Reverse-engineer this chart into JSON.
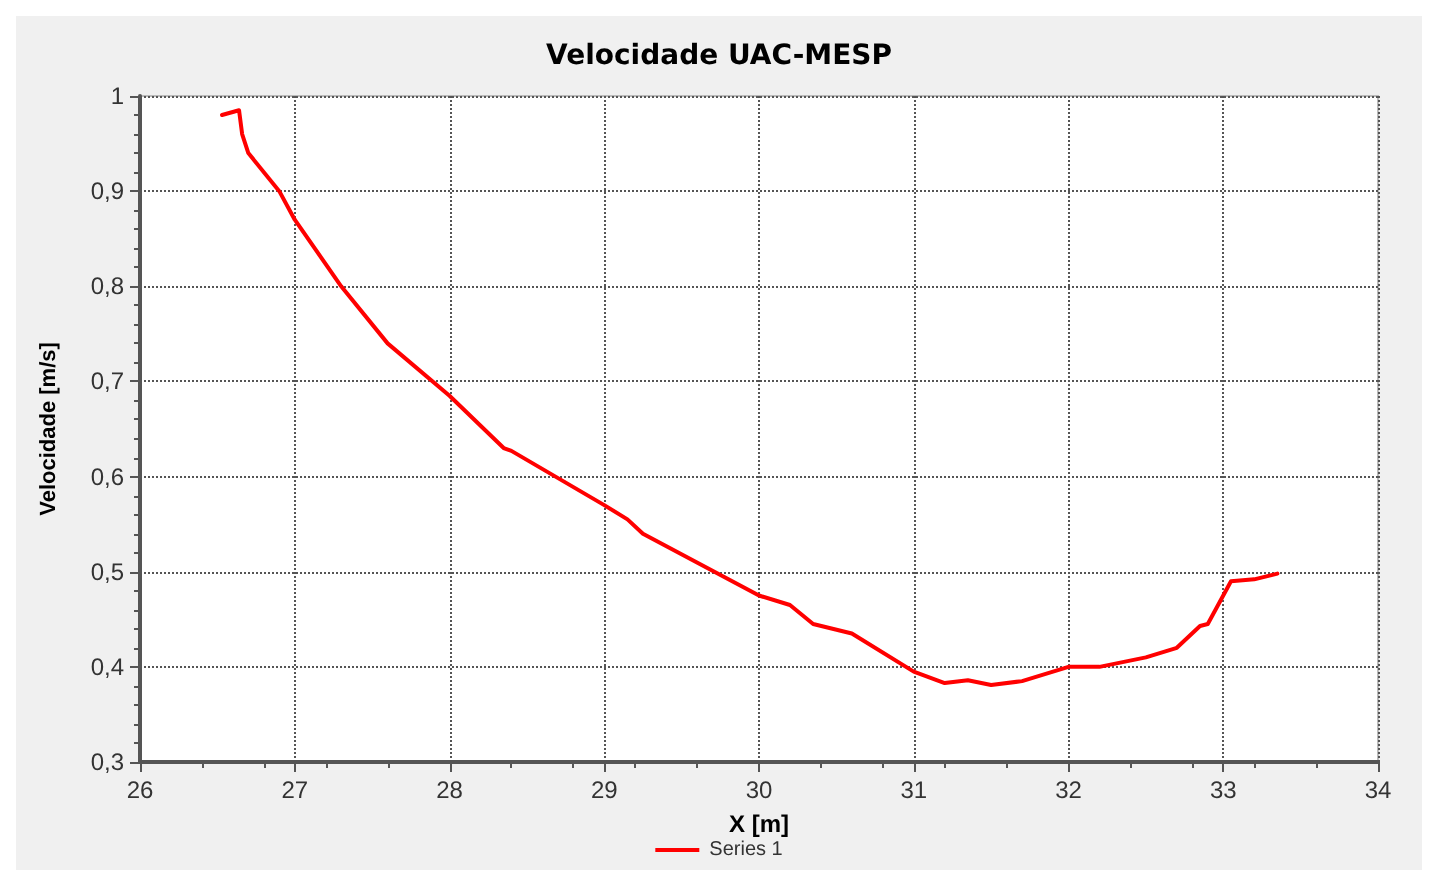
{
  "chart_data": {
    "type": "line",
    "title": "Velocidade UAC-MESP",
    "xlabel": "X [m]",
    "ylabel": "Velocidade [m/s]",
    "xlim": [
      26,
      34
    ],
    "xticks": [
      26,
      27,
      28,
      29,
      30,
      31,
      32,
      33,
      34
    ],
    "ylim": [
      0.3,
      1
    ],
    "yticks": [
      {
        "value": 0.3,
        "label": "0,3"
      },
      {
        "value": 0.4,
        "label": "0,4"
      },
      {
        "value": 0.5,
        "label": "0,5"
      },
      {
        "value": 0.6,
        "label": "0,6"
      },
      {
        "value": 0.7,
        "label": "0,7"
      },
      {
        "value": 0.8,
        "label": "0,8"
      },
      {
        "value": 0.9,
        "label": "0,9"
      },
      {
        "value": 1,
        "label": "1"
      }
    ],
    "grid": true,
    "legend": "bottom",
    "marker": "none",
    "line_style": "solid",
    "x": [
      26.53,
      26.64,
      26.66,
      26.7,
      26.9,
      27.0,
      27.3,
      27.6,
      28.0,
      28.35,
      28.4,
      29.0,
      29.15,
      29.25,
      30.0,
      30.2,
      30.35,
      30.6,
      31.0,
      31.2,
      31.35,
      31.5,
      31.7,
      32.0,
      32.2,
      32.5,
      32.7,
      32.85,
      32.9,
      33.05,
      33.2,
      33.35
    ],
    "series": [
      {
        "name": "Series 1",
        "color": "#ff0000",
        "values": [
          0.98,
          0.985,
          0.96,
          0.94,
          0.9,
          0.87,
          0.8,
          0.74,
          0.685,
          0.63,
          0.627,
          0.57,
          0.555,
          0.54,
          0.475,
          0.465,
          0.445,
          0.435,
          0.395,
          0.383,
          0.386,
          0.381,
          0.385,
          0.4,
          0.4,
          0.41,
          0.42,
          0.443,
          0.445,
          0.49,
          0.492,
          0.498
        ]
      }
    ]
  }
}
